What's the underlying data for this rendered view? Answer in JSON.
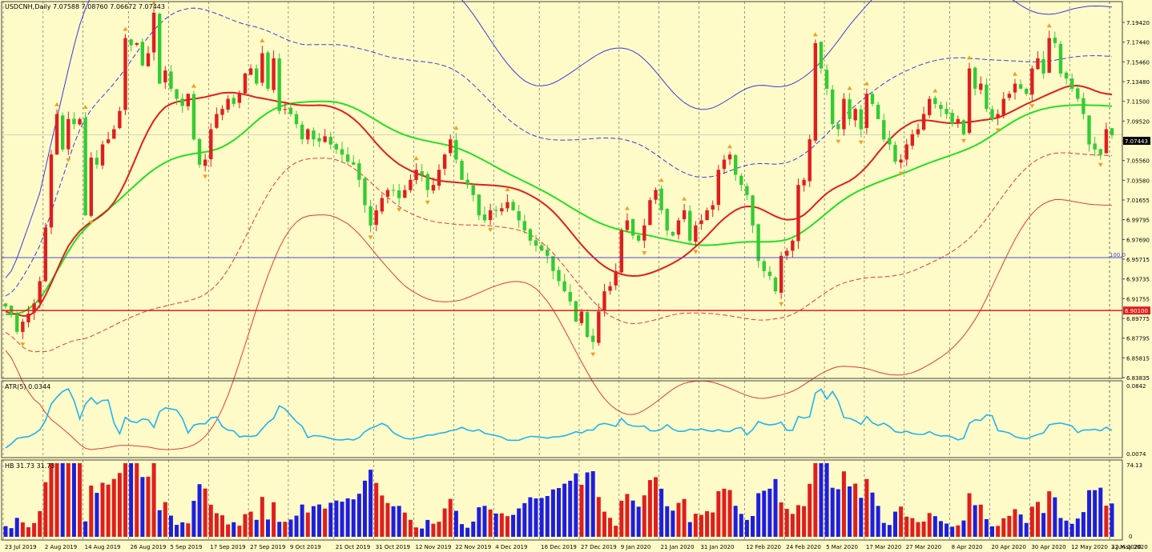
{
  "chart_data": [
    {
      "type": "candlestick",
      "panel": "price",
      "title": "USDCNH,Daily  7.07588 7.08760 7.06672 7.07443",
      "x_labels": [
        "23 Jul 2019",
        "2 Aug 2019",
        "14 Aug 2019",
        "26 Aug 2019",
        "5 Sep 2019",
        "17 Sep 2019",
        "27 Sep 2019",
        "9 Oct 2019",
        "21 Oct 2019",
        "31 Oct 2019",
        "12 Nov 2019",
        "22 Nov 2019",
        "4 Dec 2019",
        "16 Dec 2019",
        "27 Dec 2019",
        "9 Jan 2020",
        "21 Jan 2020",
        "31 Jan 2020",
        "12 Feb 2020",
        "24 Feb 2020",
        "5 Mar 2020",
        "17 Mar 2020",
        "27 Mar 2020",
        "8 Apr 2020",
        "20 Apr 2020",
        "30 Apr 2020",
        "12 May 2020",
        "22 May 2020",
        "3 Jun 2020"
      ],
      "y_ticks": [
        "7.19420",
        "7.17440",
        "7.15460",
        "7.13480",
        "7.11500",
        "7.09520",
        "7.07443",
        "7.05560",
        "7.03580",
        "7.01655",
        "6.99795",
        "6.97690",
        "6.95715",
        "6.93735",
        "6.91755",
        "6.89775",
        "6.87795",
        "6.85815",
        "6.83835"
      ],
      "ylim": [
        6.834,
        7.206
      ],
      "current_price": 7.07443,
      "current_price_label": "7.07443",
      "hline_blue_label": "100.0",
      "hline_red_label": "6.90100",
      "close": [
        6.905,
        6.897,
        6.88,
        6.89,
        6.898,
        6.908,
        6.93,
        6.983,
        7.055,
        7.095,
        7.06,
        7.09,
        7.085,
        7.09,
        6.995,
        7.052,
        7.045,
        7.065,
        7.07,
        7.08,
        7.098,
        7.17,
        7.163,
        7.165,
        7.143,
        7.155,
        7.195,
        7.125,
        7.138,
        7.12,
        7.11,
        7.103,
        7.115,
        7.07,
        7.045,
        7.05,
        7.08,
        7.095,
        7.1,
        7.11,
        7.105,
        7.115,
        7.135,
        7.14,
        7.125,
        7.155,
        7.12,
        7.15,
        7.098,
        7.1,
        7.095,
        7.085,
        7.07,
        7.08,
        7.07,
        7.068,
        7.073,
        7.065,
        7.06,
        7.055,
        7.048,
        7.045,
        7.03,
        7.005,
        6.985,
        7.0,
        7.012,
        7.02,
        7.02,
        7.012,
        7.02,
        7.03,
        7.04,
        7.035,
        7.02,
        7.025,
        7.04,
        7.055,
        7.07,
        7.05,
        7.03,
        7.025,
        7.015,
        6.995,
        6.99,
        7.0,
        7.0,
        7.002,
        7.008,
        7.0,
        6.99,
        6.98,
        6.97,
        6.965,
        6.96,
        6.955,
        6.94,
        6.93,
        6.92,
        6.91,
        6.89,
        6.9,
        6.875,
        6.87,
        6.9,
        6.92,
        6.925,
        6.94,
        6.98,
        6.99,
        6.975,
        6.97,
        6.985,
        7.01,
        7.02,
        7.0,
        6.98,
        6.975,
        6.99,
        7.0,
        6.97,
        6.985,
        6.99,
        7.0,
        7.005,
        7.04,
        7.05,
        7.055,
        7.035,
        7.025,
        7.015,
        6.985,
        6.95,
        6.94,
        6.935,
        6.92,
        6.955,
        6.96,
        6.97,
        7.025,
        7.03,
        7.07,
        7.165,
        7.14,
        7.12,
        7.085,
        7.08,
        7.11,
        7.09,
        7.1,
        7.08,
        7.115,
        7.105,
        7.09,
        7.07,
        7.065,
        7.048,
        7.05,
        7.065,
        7.075,
        7.08,
        7.095,
        7.11,
        7.105,
        7.1,
        7.095,
        7.085,
        7.09,
        7.075,
        7.14,
        7.12,
        7.125,
        7.1,
        7.09,
        7.095,
        7.11,
        7.115,
        7.125,
        7.12,
        7.115,
        7.14,
        7.15,
        7.135,
        7.17,
        7.165,
        7.135,
        7.13,
        7.12,
        7.11,
        7.095,
        7.065,
        7.06,
        7.055,
        7.08,
        7.074
      ],
      "atr": {
        "label": "ATR(5) 0.0344",
        "ylim": [
          0.0074,
          0.0842
        ],
        "y_ticks": [
          "0.0842",
          "0.0074"
        ]
      },
      "hb": {
        "label": "HB 31.73 31.73",
        "ylim": [
          0,
          74.13
        ],
        "y_ticks": [
          "74.13",
          "0"
        ]
      }
    }
  ]
}
